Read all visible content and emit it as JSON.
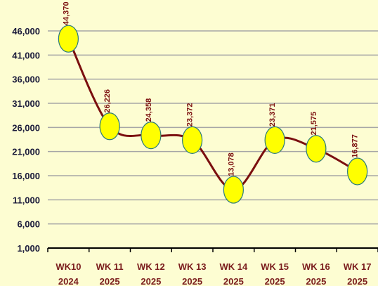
{
  "chart_data": {
    "type": "line",
    "categories": [
      [
        "WK10",
        "2024"
      ],
      [
        "WK 11",
        "2025"
      ],
      [
        "WK 12",
        "2025"
      ],
      [
        "WK 13",
        "2025"
      ],
      [
        "WK 14",
        "2025"
      ],
      [
        "WK 15",
        "2025"
      ],
      [
        "WK 16",
        "2025"
      ],
      [
        "WK 17",
        "2025"
      ]
    ],
    "series": [
      {
        "color": "#7b0f0f",
        "marker_color": "#ffff00",
        "values": [
          44370,
          26226,
          24358,
          23372,
          13078,
          23371,
          21575,
          16877
        ],
        "value_labels": [
          "44,370",
          "26,226",
          "24,358",
          "23,372",
          "13,078",
          "23,371",
          "21,575",
          "16,877"
        ]
      }
    ],
    "ylim": [
      1000,
      46000
    ],
    "yticks": [
      {
        "value": 1000,
        "label": "1,000"
      },
      {
        "value": 6000,
        "label": "6,000"
      },
      {
        "value": 11000,
        "label": "11,000"
      },
      {
        "value": 16000,
        "label": "16,000"
      },
      {
        "value": 21000,
        "label": "21,000"
      },
      {
        "value": 26000,
        "label": "26,000"
      },
      {
        "value": 31000,
        "label": "31,000"
      },
      {
        "value": 36000,
        "label": "36,000"
      },
      {
        "value": 41000,
        "label": "41,000"
      },
      {
        "value": 46000,
        "label": "46,000"
      }
    ],
    "grid": true,
    "smooth": true
  }
}
